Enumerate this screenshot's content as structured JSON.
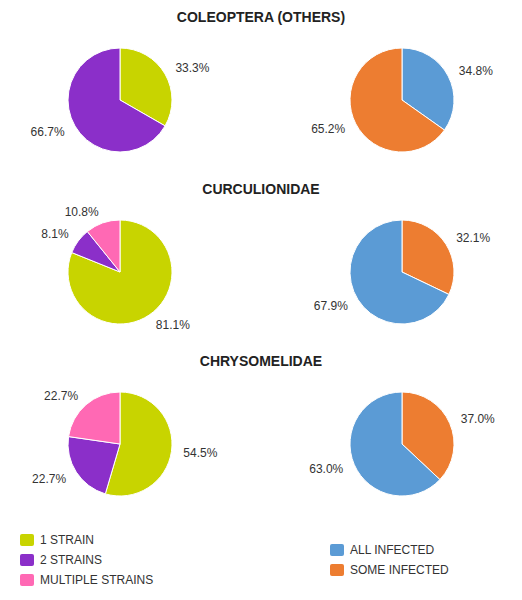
{
  "chart_data": [
    {
      "type": "pie",
      "title": "COLEOPTERA (OTHERS)",
      "categories": [
        "1 STRAIN",
        "2 STRAINS"
      ],
      "values": [
        33.3,
        66.7
      ],
      "value_labels": [
        "33.3%",
        "66.7%"
      ],
      "colors": [
        "#c8d400",
        "#8b2fc9"
      ],
      "data_labels": true,
      "legend": "bottom"
    },
    {
      "type": "pie",
      "categories": [
        "ALL INFECTED",
        "SOME INFECTED"
      ],
      "values": [
        34.8,
        65.2
      ],
      "value_labels": [
        "34.8%",
        "65.2%"
      ],
      "colors": [
        "#5b9bd5",
        "#ed7d31"
      ],
      "data_labels": true,
      "legend": "bottom"
    },
    {
      "type": "pie",
      "title": "CURCULIONIDAE",
      "categories": [
        "1 STRAIN",
        "2 STRAINS",
        "MULTIPLE STRAINS"
      ],
      "values": [
        81.1,
        8.1,
        10.8
      ],
      "value_labels": [
        "81.1%",
        "8.1%",
        "10.8%"
      ],
      "colors": [
        "#c8d400",
        "#8b2fc9",
        "#ff69b4"
      ],
      "data_labels": true,
      "legend": "bottom"
    },
    {
      "type": "pie",
      "categories": [
        "SOME INFECTED",
        "ALL INFECTED"
      ],
      "values": [
        32.1,
        67.9
      ],
      "value_labels": [
        "32.1%",
        "67.9%"
      ],
      "colors": [
        "#ed7d31",
        "#5b9bd5"
      ],
      "data_labels": true,
      "legend": "bottom"
    },
    {
      "type": "pie",
      "title": "CHRYSOMELIDAE",
      "categories": [
        "1 STRAIN",
        "2 STRAINS",
        "MULTIPLE STRAINS"
      ],
      "values": [
        54.5,
        22.7,
        22.7
      ],
      "value_labels": [
        "54.5%",
        "22.7%",
        "22.7%"
      ],
      "colors": [
        "#c8d400",
        "#8b2fc9",
        "#ff69b4"
      ],
      "data_labels": true,
      "legend": "bottom"
    },
    {
      "type": "pie",
      "categories": [
        "SOME INFECTED",
        "ALL INFECTED"
      ],
      "values": [
        37.0,
        63.0
      ],
      "value_labels": [
        "37.0%",
        "63.0%"
      ],
      "colors": [
        "#ed7d31",
        "#5b9bd5"
      ],
      "data_labels": true,
      "legend": "bottom"
    }
  ]
}
